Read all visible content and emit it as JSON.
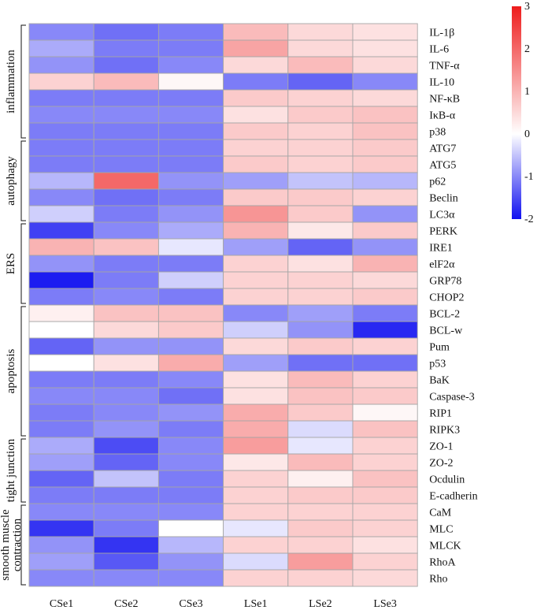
{
  "chart_data": {
    "type": "heatmap",
    "columns": [
      "CSe1",
      "CSe2",
      "CSe3",
      "LSe1",
      "LSe2",
      "LSe3"
    ],
    "rows": [
      "IL-1β",
      "IL-6",
      "TNF-α",
      "IL-10",
      "NF-κB",
      "IκB-α",
      "p38",
      "ATG7",
      "ATG5",
      "p62",
      "Beclin",
      "LC3α",
      "PERK",
      "IRE1",
      "elF2α",
      "GRP78",
      "CHOP2",
      "BCL-2",
      "BCL-w",
      "Pum",
      "p53",
      "BaK",
      "Caspase-3",
      "RIP1",
      "RIPK3",
      "ZO-1",
      "ZO-2",
      "Ocdulin",
      "E-cadherin",
      "CaM",
      "MLC",
      "MLCK",
      "RhoA",
      "Rho"
    ],
    "values": [
      [
        -1.0,
        -1.2,
        -1.1,
        0.9,
        0.5,
        0.4
      ],
      [
        -0.7,
        -1.1,
        -1.1,
        1.2,
        0.5,
        0.4
      ],
      [
        -0.9,
        -1.2,
        -1.0,
        0.5,
        0.9,
        0.5
      ],
      [
        0.6,
        0.9,
        0.1,
        -1.1,
        -1.3,
        -1.0
      ],
      [
        -1.1,
        -1.1,
        -1.1,
        0.7,
        0.6,
        0.5
      ],
      [
        -1.0,
        -1.0,
        -1.0,
        0.4,
        0.7,
        0.8
      ],
      [
        -1.1,
        -1.1,
        -1.1,
        0.7,
        0.6,
        0.8
      ],
      [
        -1.1,
        -1.1,
        -1.1,
        0.6,
        0.6,
        0.7
      ],
      [
        -1.1,
        -1.1,
        -1.1,
        0.7,
        0.6,
        0.7
      ],
      [
        -0.6,
        2.0,
        -0.9,
        -0.8,
        -0.5,
        -0.6
      ],
      [
        -1.0,
        -1.2,
        -1.1,
        0.7,
        0.7,
        0.6
      ],
      [
        -0.4,
        -1.1,
        -0.9,
        1.4,
        0.7,
        -0.9
      ],
      [
        -1.6,
        -1.0,
        -0.7,
        1.0,
        0.3,
        0.7
      ],
      [
        1.0,
        0.8,
        -0.2,
        -0.8,
        -1.3,
        -0.9
      ],
      [
        -0.9,
        -1.1,
        -1.1,
        0.6,
        0.4,
        1.0
      ],
      [
        -1.9,
        -1.1,
        -0.4,
        0.6,
        0.6,
        0.5
      ],
      [
        -1.1,
        -1.0,
        -1.1,
        0.6,
        0.6,
        0.7
      ],
      [
        0.2,
        0.8,
        0.8,
        -1.0,
        -0.8,
        -1.1
      ],
      [
        0.0,
        0.5,
        0.7,
        -0.4,
        -0.9,
        -1.8
      ],
      [
        -1.3,
        -0.9,
        -0.9,
        0.5,
        0.7,
        0.6
      ],
      [
        0.0,
        0.4,
        1.1,
        -0.8,
        -1.2,
        -1.2
      ],
      [
        -1.1,
        -1.1,
        -1.0,
        0.4,
        0.9,
        0.6
      ],
      [
        -1.0,
        -1.0,
        -1.2,
        0.4,
        0.8,
        0.7
      ],
      [
        -1.1,
        -1.0,
        -0.9,
        1.1,
        0.7,
        0.1
      ],
      [
        -1.1,
        -0.9,
        -1.1,
        1.1,
        -0.3,
        0.8
      ],
      [
        -0.7,
        -1.5,
        -1.0,
        1.3,
        -0.2,
        0.6
      ],
      [
        -0.8,
        -1.3,
        -1.0,
        0.3,
        0.9,
        0.6
      ],
      [
        -1.3,
        -0.5,
        -1.1,
        0.6,
        0.2,
        0.8
      ],
      [
        -1.1,
        -1.1,
        -1.1,
        0.6,
        0.7,
        0.7
      ],
      [
        -1.0,
        -1.0,
        -1.0,
        0.6,
        0.6,
        0.6
      ],
      [
        -1.7,
        -1.1,
        0.0,
        -0.2,
        0.7,
        0.6
      ],
      [
        -0.9,
        -1.7,
        -0.6,
        0.6,
        0.6,
        0.4
      ],
      [
        -0.8,
        -1.4,
        -0.9,
        -0.3,
        1.3,
        0.6
      ],
      [
        -1.0,
        -1.0,
        -1.0,
        0.6,
        0.6,
        0.5
      ]
    ],
    "groups": [
      {
        "label": "inflammation",
        "rows": [
          0,
          6
        ]
      },
      {
        "label": "autophagy",
        "rows": [
          7,
          11
        ]
      },
      {
        "label": "ERS",
        "rows": [
          12,
          16
        ]
      },
      {
        "label": "apoptosis",
        "rows": [
          17,
          24
        ]
      },
      {
        "label": "tight junction",
        "rows": [
          25,
          28
        ]
      },
      {
        "label": "smooth muscle contraction",
        "rows": [
          29,
          33
        ]
      }
    ],
    "colorbar": {
      "min": -2,
      "max": 3,
      "ticks": [
        "3",
        "2",
        "1",
        "0",
        "-1",
        "-2"
      ],
      "low_color": "#1010f0",
      "mid_color": "#ffffff",
      "high_color": "#ee1c1c"
    },
    "legend_position": "top-right"
  }
}
